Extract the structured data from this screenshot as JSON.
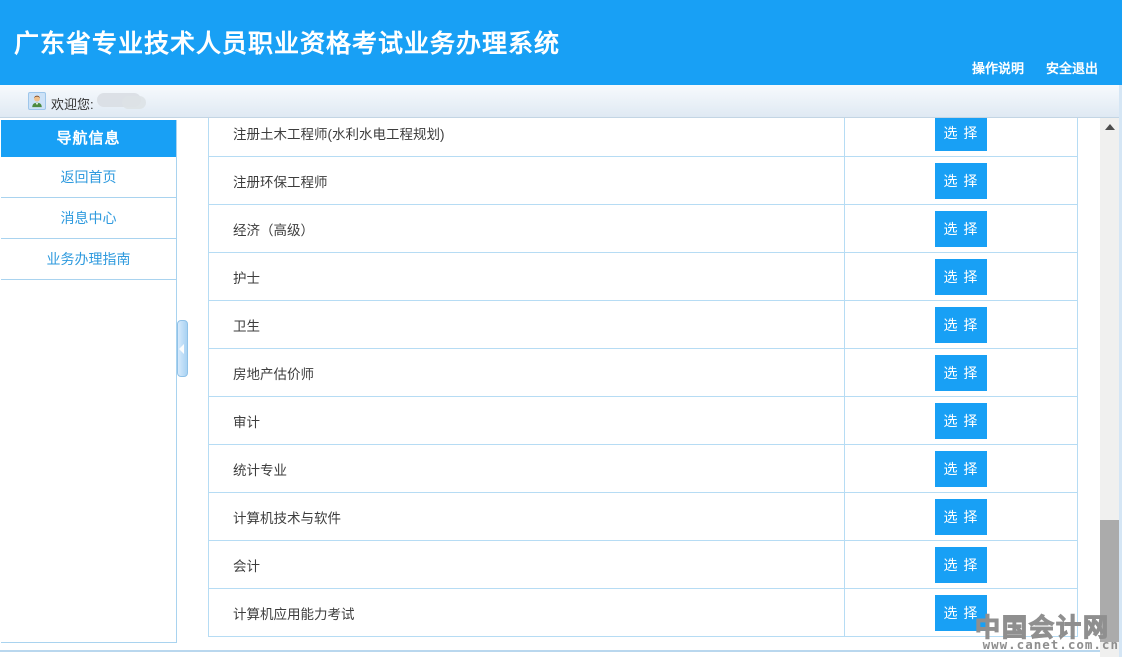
{
  "header": {
    "title": "广东省专业技术人员职业资格考试业务办理系统",
    "links": [
      {
        "label": "操作说明"
      },
      {
        "label": "安全退出"
      }
    ]
  },
  "welcome": {
    "greeting": "欢迎您:"
  },
  "sidebar": {
    "title": "导航信息",
    "items": [
      {
        "label": "返回首页"
      },
      {
        "label": "消息中心"
      },
      {
        "label": "业务办理指南"
      }
    ]
  },
  "content": {
    "select_label": "选 择",
    "rows": [
      {
        "name": "注册土木工程师(水利水电工程规划)"
      },
      {
        "name": "注册环保工程师"
      },
      {
        "name": "经济（高级）"
      },
      {
        "name": "护士"
      },
      {
        "name": "卫生"
      },
      {
        "name": "房地产估价师"
      },
      {
        "name": "审计"
      },
      {
        "name": "统计专业"
      },
      {
        "name": "计算机技术与软件"
      },
      {
        "name": "会计"
      },
      {
        "name": "计算机应用能力考试"
      }
    ]
  },
  "watermark": {
    "site_name": "中国会计网",
    "site_url": "www.canet.com.cn"
  },
  "colors": {
    "accent": "#18a0f5",
    "table-border": "#b6dcf4",
    "sidebar-border": "#a9d3ef",
    "link-blue": "#2e9ade"
  }
}
